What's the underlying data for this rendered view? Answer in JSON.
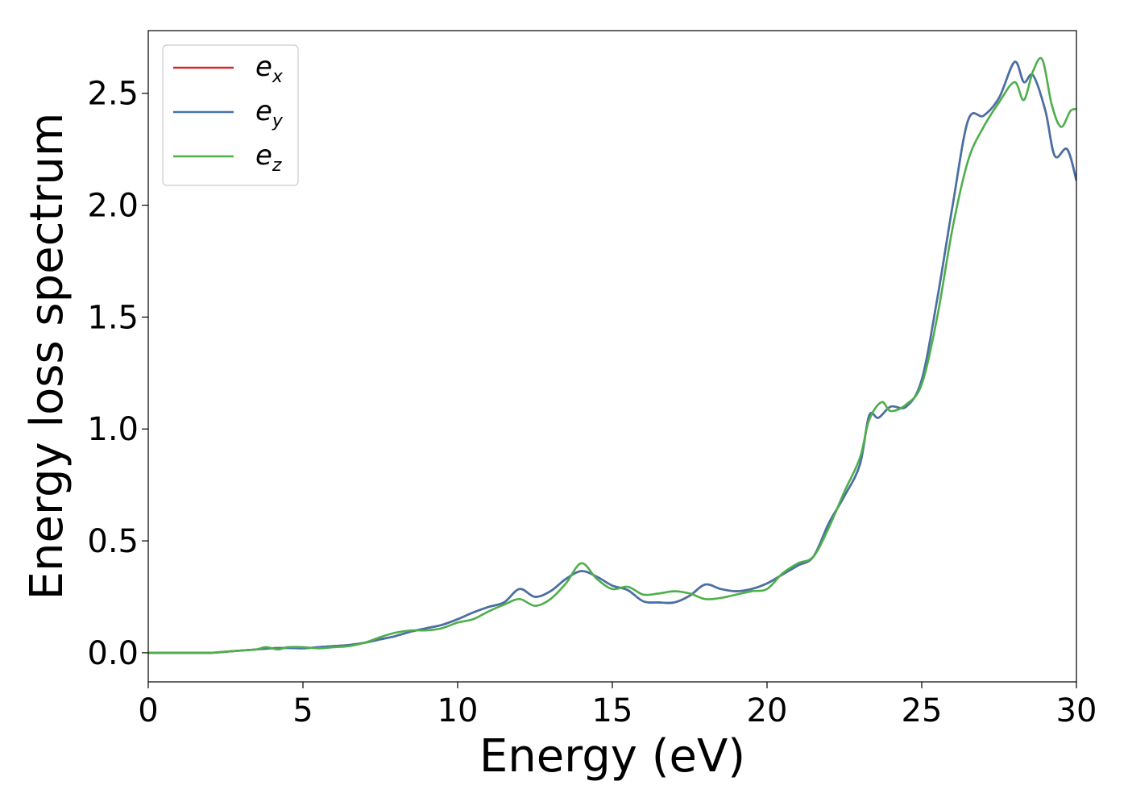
{
  "chart_data": {
    "type": "line",
    "title": "",
    "xlabel": "Energy (eV)",
    "ylabel": "Energy loss spectrum",
    "xlim": [
      0,
      30
    ],
    "ylim": [
      -0.13,
      2.78
    ],
    "xticks": [
      0,
      5,
      10,
      15,
      20,
      25,
      30
    ],
    "yticks": [
      0.0,
      0.5,
      1.0,
      1.5,
      2.0,
      2.5
    ],
    "xtick_labels": [
      "0",
      "5",
      "10",
      "15",
      "20",
      "25",
      "30"
    ],
    "ytick_labels": [
      "0.0",
      "0.5",
      "1.0",
      "1.5",
      "2.0",
      "2.5"
    ],
    "grid": false,
    "legend_position": "top-left",
    "series": [
      {
        "name": "e_x",
        "legend_base": "e",
        "legend_sub": "x",
        "color": "#d62728",
        "x": [
          0,
          1,
          2,
          2.5,
          3,
          3.5,
          4,
          4.5,
          5,
          5.5,
          6,
          6.5,
          7,
          7.5,
          8,
          8.5,
          9,
          9.5,
          10,
          10.5,
          11,
          11.5,
          12,
          12.5,
          13,
          13.5,
          14,
          14.5,
          15,
          15.5,
          16,
          16.5,
          17,
          17.5,
          18,
          18.5,
          19,
          19.5,
          20,
          20.5,
          21,
          21.5,
          22,
          22.5,
          23,
          23.3,
          23.6,
          24,
          24.5,
          25,
          25.5,
          26,
          26.5,
          27,
          27.5,
          28,
          28.3,
          28.6,
          29,
          29.3,
          29.7,
          30
        ],
        "y": [
          0.0,
          0.0,
          0.0,
          0.005,
          0.01,
          0.015,
          0.02,
          0.022,
          0.02,
          0.025,
          0.03,
          0.035,
          0.045,
          0.06,
          0.075,
          0.095,
          0.11,
          0.125,
          0.15,
          0.18,
          0.205,
          0.225,
          0.285,
          0.25,
          0.275,
          0.33,
          0.365,
          0.34,
          0.3,
          0.28,
          0.23,
          0.225,
          0.225,
          0.255,
          0.305,
          0.285,
          0.275,
          0.285,
          0.31,
          0.35,
          0.39,
          0.43,
          0.58,
          0.7,
          0.84,
          1.06,
          1.05,
          1.1,
          1.1,
          1.22,
          1.58,
          2.0,
          2.38,
          2.4,
          2.48,
          2.64,
          2.55,
          2.58,
          2.42,
          2.22,
          2.25,
          2.11
        ]
      },
      {
        "name": "e_y",
        "legend_base": "e",
        "legend_sub": "y",
        "color": "#4472a8",
        "x": [
          0,
          1,
          2,
          2.5,
          3,
          3.5,
          4,
          4.5,
          5,
          5.5,
          6,
          6.5,
          7,
          7.5,
          8,
          8.5,
          9,
          9.5,
          10,
          10.5,
          11,
          11.5,
          12,
          12.5,
          13,
          13.5,
          14,
          14.5,
          15,
          15.5,
          16,
          16.5,
          17,
          17.5,
          18,
          18.5,
          19,
          19.5,
          20,
          20.5,
          21,
          21.5,
          22,
          22.5,
          23,
          23.3,
          23.6,
          24,
          24.5,
          25,
          25.5,
          26,
          26.5,
          27,
          27.5,
          28,
          28.3,
          28.6,
          29,
          29.3,
          29.7,
          30
        ],
        "y": [
          0.0,
          0.0,
          0.0,
          0.005,
          0.01,
          0.015,
          0.02,
          0.022,
          0.02,
          0.025,
          0.03,
          0.035,
          0.045,
          0.06,
          0.075,
          0.095,
          0.11,
          0.125,
          0.15,
          0.18,
          0.205,
          0.225,
          0.285,
          0.25,
          0.275,
          0.33,
          0.365,
          0.34,
          0.3,
          0.28,
          0.23,
          0.225,
          0.225,
          0.255,
          0.305,
          0.285,
          0.275,
          0.285,
          0.31,
          0.35,
          0.39,
          0.43,
          0.58,
          0.7,
          0.84,
          1.06,
          1.05,
          1.1,
          1.1,
          1.22,
          1.58,
          2.0,
          2.38,
          2.4,
          2.48,
          2.64,
          2.55,
          2.58,
          2.42,
          2.22,
          2.25,
          2.11
        ]
      },
      {
        "name": "e_z",
        "legend_base": "e",
        "legend_sub": "z",
        "color": "#4daf4a",
        "x": [
          0,
          1,
          2,
          2.5,
          3,
          3.5,
          3.8,
          4.2,
          4.5,
          5,
          5.5,
          6,
          6.5,
          7,
          7.5,
          8,
          8.5,
          9,
          9.5,
          10,
          10.5,
          11,
          11.5,
          12,
          12.5,
          13,
          13.5,
          14,
          14.5,
          15,
          15.5,
          16,
          16.5,
          17,
          17.5,
          18,
          18.5,
          19,
          19.5,
          20,
          20.5,
          21,
          21.5,
          22,
          22.5,
          23,
          23.3,
          23.7,
          24,
          24.5,
          25,
          25.5,
          26,
          26.5,
          27,
          27.5,
          28,
          28.3,
          28.6,
          28.9,
          29.2,
          29.5,
          29.8,
          30
        ],
        "y": [
          0.0,
          0.0,
          0.0,
          0.005,
          0.01,
          0.015,
          0.025,
          0.015,
          0.025,
          0.025,
          0.02,
          0.025,
          0.03,
          0.045,
          0.07,
          0.09,
          0.1,
          0.1,
          0.11,
          0.135,
          0.15,
          0.185,
          0.215,
          0.24,
          0.21,
          0.24,
          0.31,
          0.4,
          0.33,
          0.285,
          0.295,
          0.26,
          0.265,
          0.275,
          0.265,
          0.24,
          0.245,
          0.26,
          0.275,
          0.285,
          0.355,
          0.4,
          0.43,
          0.56,
          0.72,
          0.87,
          1.04,
          1.12,
          1.08,
          1.11,
          1.2,
          1.5,
          1.9,
          2.2,
          2.35,
          2.46,
          2.55,
          2.47,
          2.6,
          2.65,
          2.45,
          2.35,
          2.42,
          2.43
        ]
      }
    ]
  }
}
